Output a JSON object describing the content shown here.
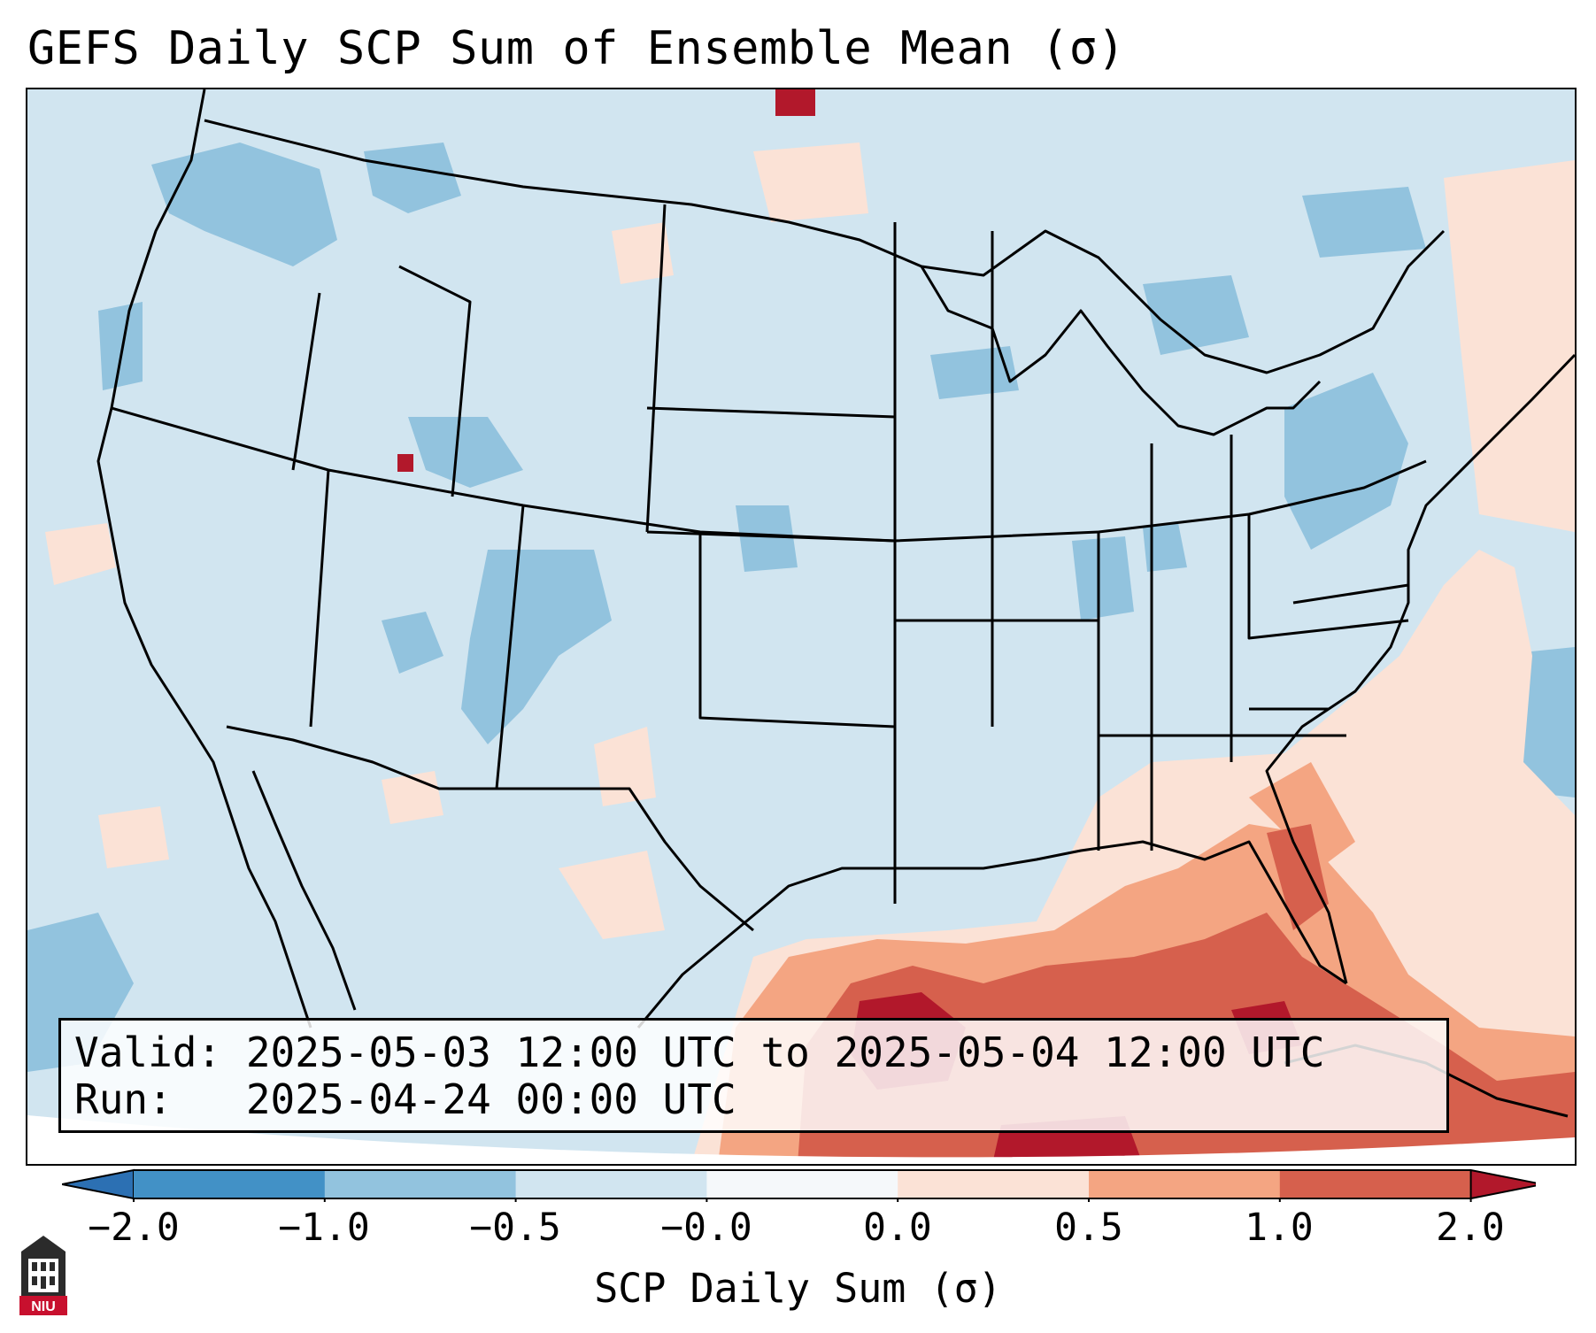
{
  "title": "GEFS Daily SCP Sum of Ensemble Mean (σ)",
  "info": {
    "valid_text": "Valid: 2025-05-03 12:00 UTC to 2025-05-04 12:00 UTC",
    "run_text": "Run:   2025-04-24 00:00 UTC"
  },
  "colorbar": {
    "label": "SCP Daily Sum (σ)",
    "ticks": [
      "−2.0",
      "−1.0",
      "−0.5",
      "−0.0",
      "0.0",
      "0.5",
      "1.0",
      "2.0"
    ],
    "colors": {
      "under": "#2c70b3",
      "bins": [
        "#4291c6",
        "#92c3de",
        "#d1e5f0",
        "#f5f8fa",
        "#fbe2d6",
        "#f4a582",
        "#d6604d"
      ],
      "over": "#b2182b"
    }
  },
  "map": {
    "projection": "Lambert conformal, contiguous United States",
    "background_category": "-0.5 to -0.0",
    "features": [
      "state-borders",
      "country-borders",
      "coastlines",
      "great-lakes"
    ],
    "regions": [
      {
        "name": "Gulf of Mexico",
        "level": "1.0 to 2.0"
      },
      {
        "name": "Florida and Southeast coast",
        "level": "0.5 to 1.0"
      },
      {
        "name": "Georgia and Carolinas",
        "level": "0.0 to 0.5"
      },
      {
        "name": "Colorado and Utah patches",
        "level": "-1.0 to -0.5"
      },
      {
        "name": "Pacific Northwest patches",
        "level": "-1.0 to -0.5"
      },
      {
        "name": "Pennsylvania and New York patches",
        "level": "-1.0 to -0.5"
      }
    ]
  },
  "logo": {
    "text": "NIU"
  }
}
